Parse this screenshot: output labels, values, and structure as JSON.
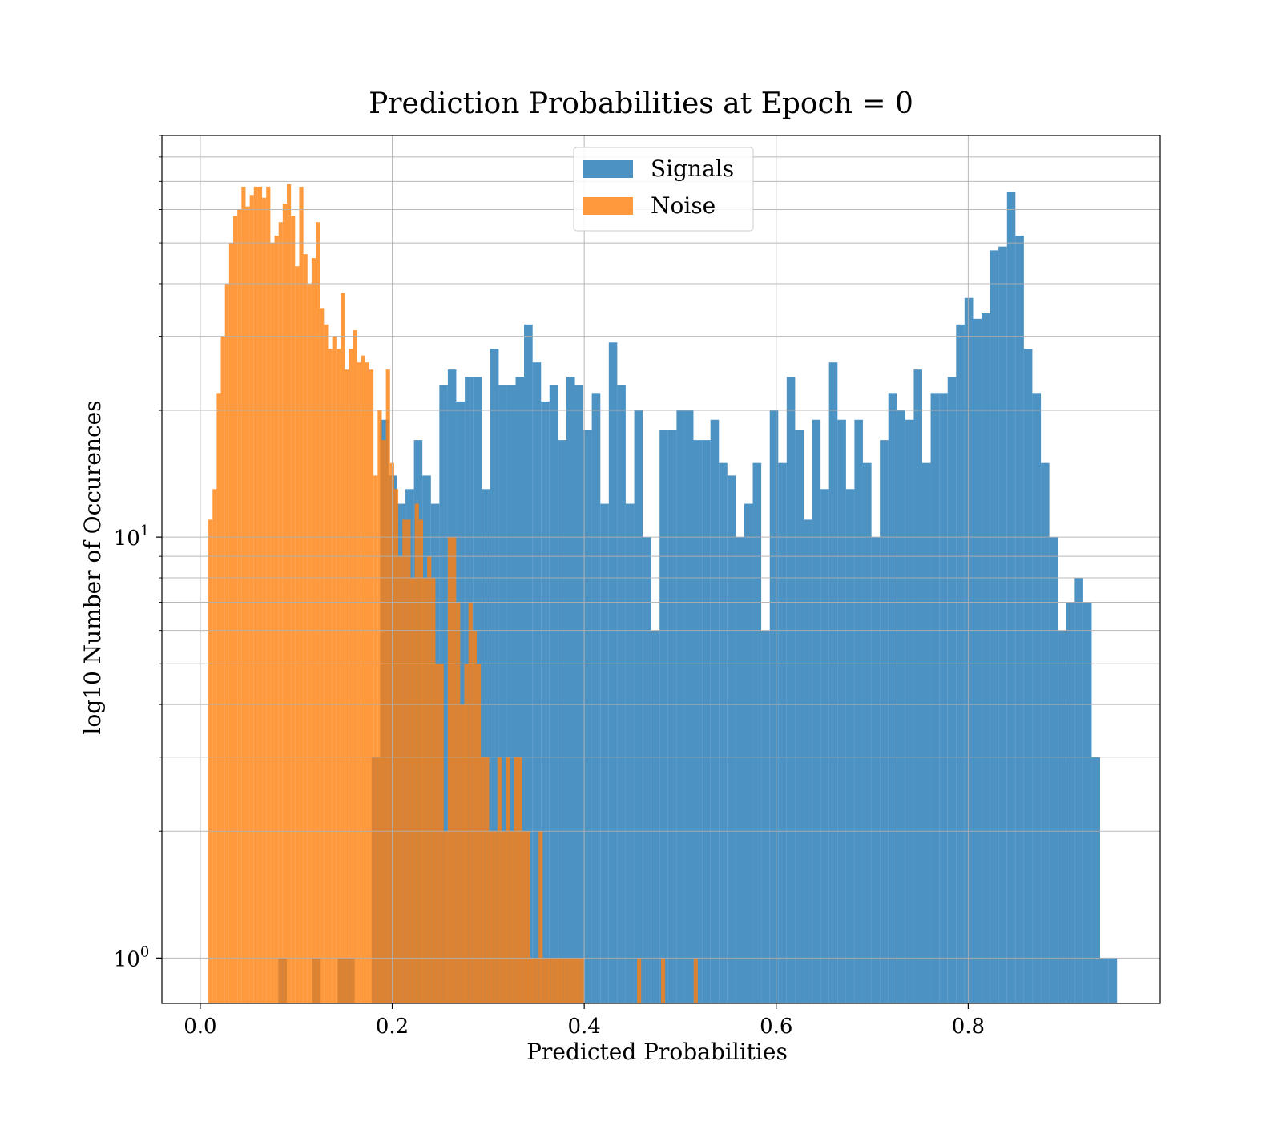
{
  "chart_data": {
    "type": "bar",
    "subtype": "histogram",
    "title": "Prediction Probabilities at Epoch = 0",
    "xlabel": "Predicted Probabilities",
    "ylabel": "log10 Number of Occurences",
    "xlim": [
      -0.04,
      1.0
    ],
    "ylim": [
      0.78,
      90
    ],
    "yscale": "log",
    "grid": true,
    "legend_placement": "upper-center",
    "x_ticks": [
      {
        "value": 0.0,
        "label": "0.0"
      },
      {
        "value": 0.2,
        "label": "0.2"
      },
      {
        "value": 0.4,
        "label": "0.4"
      },
      {
        "value": 0.6,
        "label": "0.6"
      },
      {
        "value": 0.8,
        "label": "0.8"
      }
    ],
    "y_ticks": [
      {
        "value": 1,
        "base": "10",
        "exponent": "0"
      },
      {
        "value": 10,
        "base": "10",
        "exponent": "1"
      }
    ],
    "series": [
      {
        "name": "Signals",
        "color": "#1f77b4",
        "alpha": 0.8,
        "bins": [
          [
            0.0814,
            0.0902,
            1
          ],
          [
            0.1167,
            0.1255,
            1
          ],
          [
            0.1432,
            0.152,
            1
          ],
          [
            0.152,
            0.1608,
            1
          ],
          [
            0.1785,
            0.1873,
            3
          ],
          [
            0.1873,
            0.1961,
            19
          ],
          [
            0.1961,
            0.205,
            14
          ],
          [
            0.205,
            0.2138,
            12
          ],
          [
            0.2138,
            0.2226,
            13
          ],
          [
            0.2226,
            0.2314,
            17
          ],
          [
            0.2314,
            0.2403,
            14
          ],
          [
            0.2403,
            0.2491,
            12
          ],
          [
            0.2491,
            0.2579,
            23
          ],
          [
            0.2579,
            0.2667,
            25
          ],
          [
            0.2667,
            0.2756,
            21
          ],
          [
            0.2756,
            0.2844,
            24
          ],
          [
            0.2844,
            0.2932,
            24
          ],
          [
            0.2932,
            0.302,
            13
          ],
          [
            0.302,
            0.3109,
            28
          ],
          [
            0.3109,
            0.3197,
            23
          ],
          [
            0.3197,
            0.3285,
            23
          ],
          [
            0.3285,
            0.3373,
            24
          ],
          [
            0.3373,
            0.3462,
            32
          ],
          [
            0.3462,
            0.355,
            26
          ],
          [
            0.355,
            0.3638,
            21
          ],
          [
            0.3638,
            0.3726,
            23
          ],
          [
            0.3726,
            0.3815,
            17
          ],
          [
            0.3815,
            0.3903,
            24
          ],
          [
            0.3903,
            0.3991,
            23
          ],
          [
            0.3991,
            0.4079,
            18
          ],
          [
            0.4079,
            0.4168,
            22
          ],
          [
            0.4168,
            0.4256,
            12
          ],
          [
            0.4256,
            0.4344,
            29
          ],
          [
            0.4344,
            0.4432,
            23
          ],
          [
            0.4432,
            0.4521,
            12
          ],
          [
            0.4521,
            0.4609,
            20
          ],
          [
            0.4609,
            0.4697,
            10
          ],
          [
            0.4697,
            0.4785,
            6
          ],
          [
            0.4785,
            0.4874,
            18
          ],
          [
            0.4874,
            0.4962,
            18
          ],
          [
            0.4962,
            0.505,
            20
          ],
          [
            0.505,
            0.5138,
            20
          ],
          [
            0.5138,
            0.5227,
            17
          ],
          [
            0.5227,
            0.5315,
            17
          ],
          [
            0.5315,
            0.5403,
            19
          ],
          [
            0.5403,
            0.5491,
            15
          ],
          [
            0.5491,
            0.558,
            14
          ],
          [
            0.558,
            0.5668,
            10
          ],
          [
            0.5668,
            0.5756,
            12
          ],
          [
            0.5756,
            0.5844,
            15
          ],
          [
            0.5844,
            0.5933,
            6
          ],
          [
            0.5933,
            0.6021,
            20
          ],
          [
            0.6021,
            0.6109,
            15
          ],
          [
            0.6109,
            0.6197,
            24
          ],
          [
            0.6197,
            0.6286,
            18
          ],
          [
            0.6286,
            0.6374,
            11
          ],
          [
            0.6374,
            0.6462,
            19
          ],
          [
            0.6462,
            0.655,
            13
          ],
          [
            0.655,
            0.6639,
            26
          ],
          [
            0.6639,
            0.6727,
            19
          ],
          [
            0.6727,
            0.6815,
            13
          ],
          [
            0.6815,
            0.6903,
            19
          ],
          [
            0.6903,
            0.6992,
            15
          ],
          [
            0.6992,
            0.708,
            10
          ],
          [
            0.708,
            0.7168,
            17
          ],
          [
            0.7168,
            0.7256,
            22
          ],
          [
            0.7256,
            0.7345,
            20
          ],
          [
            0.7345,
            0.7433,
            19
          ],
          [
            0.7433,
            0.7521,
            25
          ],
          [
            0.7521,
            0.7609,
            15
          ],
          [
            0.7609,
            0.7698,
            22
          ],
          [
            0.7698,
            0.7786,
            22
          ],
          [
            0.7786,
            0.7874,
            24
          ],
          [
            0.7874,
            0.7962,
            32
          ],
          [
            0.7962,
            0.8051,
            37
          ],
          [
            0.8051,
            0.8139,
            33
          ],
          [
            0.8139,
            0.8227,
            34
          ],
          [
            0.8227,
            0.8315,
            48
          ],
          [
            0.8315,
            0.8404,
            49
          ],
          [
            0.8404,
            0.8492,
            66
          ],
          [
            0.8492,
            0.858,
            52
          ],
          [
            0.858,
            0.8668,
            28
          ],
          [
            0.8668,
            0.8757,
            22
          ],
          [
            0.8757,
            0.8845,
            15
          ],
          [
            0.8845,
            0.8933,
            10
          ],
          [
            0.8933,
            0.9021,
            6
          ],
          [
            0.9021,
            0.911,
            7
          ],
          [
            0.911,
            0.9198,
            8
          ],
          [
            0.9198,
            0.9286,
            7
          ],
          [
            0.9286,
            0.9374,
            3
          ],
          [
            0.9374,
            0.9463,
            1
          ],
          [
            0.9463,
            0.9551,
            1
          ]
        ]
      },
      {
        "name": "Noise",
        "color": "#ff7f0e",
        "alpha": 0.8,
        "bins": [
          [
            0.0085,
            0.0128,
            11
          ],
          [
            0.0128,
            0.0171,
            13
          ],
          [
            0.0171,
            0.0214,
            22
          ],
          [
            0.0214,
            0.0257,
            30
          ],
          [
            0.0257,
            0.03,
            40
          ],
          [
            0.03,
            0.0343,
            50
          ],
          [
            0.0343,
            0.0386,
            58
          ],
          [
            0.0386,
            0.0429,
            60
          ],
          [
            0.0429,
            0.0472,
            68
          ],
          [
            0.0472,
            0.0515,
            61
          ],
          [
            0.0515,
            0.0558,
            65
          ],
          [
            0.0558,
            0.0601,
            68
          ],
          [
            0.0601,
            0.0644,
            68
          ],
          [
            0.0644,
            0.0687,
            64
          ],
          [
            0.0687,
            0.073,
            68
          ],
          [
            0.073,
            0.0773,
            50
          ],
          [
            0.0773,
            0.0816,
            52
          ],
          [
            0.0816,
            0.0859,
            56
          ],
          [
            0.0859,
            0.0902,
            62
          ],
          [
            0.0902,
            0.0945,
            69
          ],
          [
            0.0945,
            0.0988,
            58
          ],
          [
            0.0988,
            0.1031,
            44
          ],
          [
            0.1031,
            0.1074,
            68
          ],
          [
            0.1074,
            0.1117,
            47
          ],
          [
            0.1117,
            0.116,
            40
          ],
          [
            0.116,
            0.1203,
            46
          ],
          [
            0.1203,
            0.1246,
            56
          ],
          [
            0.1246,
            0.1289,
            35
          ],
          [
            0.1289,
            0.1332,
            32
          ],
          [
            0.1332,
            0.1375,
            28
          ],
          [
            0.1375,
            0.1418,
            30
          ],
          [
            0.1418,
            0.1461,
            28
          ],
          [
            0.1461,
            0.1504,
            38
          ],
          [
            0.1504,
            0.1547,
            25
          ],
          [
            0.1547,
            0.159,
            28
          ],
          [
            0.159,
            0.1633,
            31
          ],
          [
            0.1633,
            0.1676,
            26
          ],
          [
            0.1676,
            0.1719,
            27
          ],
          [
            0.1719,
            0.1762,
            26
          ],
          [
            0.1762,
            0.1805,
            25
          ],
          [
            0.1805,
            0.1848,
            14
          ],
          [
            0.1848,
            0.1891,
            20
          ],
          [
            0.1891,
            0.1934,
            17
          ],
          [
            0.1934,
            0.1977,
            25
          ],
          [
            0.1977,
            0.202,
            15
          ],
          [
            0.202,
            0.2063,
            13
          ],
          [
            0.2063,
            0.2106,
            9
          ],
          [
            0.2106,
            0.2149,
            11
          ],
          [
            0.2149,
            0.2192,
            11
          ],
          [
            0.2192,
            0.2235,
            8
          ],
          [
            0.2235,
            0.2278,
            12
          ],
          [
            0.2278,
            0.2321,
            11
          ],
          [
            0.2321,
            0.2364,
            8
          ],
          [
            0.2364,
            0.2407,
            9
          ],
          [
            0.2407,
            0.245,
            8
          ],
          [
            0.245,
            0.2493,
            5
          ],
          [
            0.2493,
            0.2536,
            5
          ],
          [
            0.2536,
            0.2579,
            2
          ],
          [
            0.2579,
            0.2622,
            10
          ],
          [
            0.2622,
            0.2665,
            10
          ],
          [
            0.2665,
            0.2708,
            7
          ],
          [
            0.2708,
            0.2751,
            4
          ],
          [
            0.2751,
            0.2794,
            5
          ],
          [
            0.2794,
            0.2837,
            7
          ],
          [
            0.2837,
            0.288,
            6
          ],
          [
            0.288,
            0.2923,
            5
          ],
          [
            0.2923,
            0.2966,
            3
          ],
          [
            0.2966,
            0.3009,
            3
          ],
          [
            0.3009,
            0.3052,
            2
          ],
          [
            0.3052,
            0.3095,
            2
          ],
          [
            0.3095,
            0.3138,
            3
          ],
          [
            0.3138,
            0.3181,
            2
          ],
          [
            0.3181,
            0.3224,
            3
          ],
          [
            0.3224,
            0.3267,
            2
          ],
          [
            0.3267,
            0.331,
            3
          ],
          [
            0.331,
            0.3353,
            3
          ],
          [
            0.3353,
            0.3396,
            2
          ],
          [
            0.3396,
            0.3439,
            2
          ],
          [
            0.3439,
            0.3482,
            1
          ],
          [
            0.3482,
            0.3525,
            1
          ],
          [
            0.3525,
            0.3568,
            2
          ],
          [
            0.3568,
            0.3611,
            1
          ],
          [
            0.3611,
            0.3654,
            1
          ],
          [
            0.3654,
            0.3697,
            1
          ],
          [
            0.3697,
            0.374,
            1
          ],
          [
            0.374,
            0.3783,
            1
          ],
          [
            0.3783,
            0.3826,
            1
          ],
          [
            0.3826,
            0.3869,
            1
          ],
          [
            0.3869,
            0.3912,
            1
          ],
          [
            0.3912,
            0.3955,
            1
          ],
          [
            0.3955,
            0.3998,
            1
          ],
          [
            0.455,
            0.4593,
            1
          ],
          [
            0.48,
            0.4843,
            1
          ],
          [
            0.514,
            0.5183,
            1
          ]
        ]
      }
    ]
  }
}
